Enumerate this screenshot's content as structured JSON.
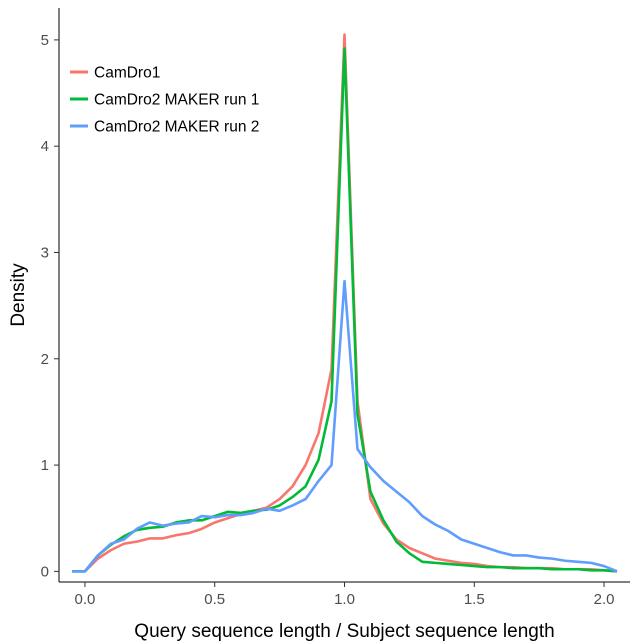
{
  "chart_data": {
    "type": "line",
    "title": "",
    "xlabel": "Query sequence length / Subject sequence length",
    "ylabel": "Density",
    "xlim": [
      -0.1,
      2.1
    ],
    "ylim": [
      -0.1,
      5.3
    ],
    "x_ticks": [
      0.0,
      0.5,
      1.0,
      1.5,
      2.0
    ],
    "x_tick_labels": [
      "0.0",
      "0.5",
      "1.0",
      "1.5",
      "2.0"
    ],
    "y_ticks": [
      0,
      1,
      2,
      3,
      4,
      5
    ],
    "y_tick_labels": [
      "0",
      "1",
      "2",
      "3",
      "4",
      "5"
    ],
    "grid": false,
    "legend_position": "top-left",
    "series": [
      {
        "name": "CamDro1",
        "color": "#F8766D",
        "x": [
          -0.05,
          0.0,
          0.05,
          0.1,
          0.15,
          0.2,
          0.25,
          0.3,
          0.35,
          0.4,
          0.45,
          0.5,
          0.55,
          0.6,
          0.65,
          0.7,
          0.75,
          0.8,
          0.85,
          0.9,
          0.95,
          1.0,
          1.05,
          1.1,
          1.15,
          1.2,
          1.25,
          1.3,
          1.35,
          1.4,
          1.45,
          1.5,
          1.55,
          1.6,
          1.65,
          1.7,
          1.75,
          1.8,
          1.85,
          1.9,
          1.95,
          2.0,
          2.05
        ],
        "y": [
          0.0,
          0.0,
          0.12,
          0.2,
          0.26,
          0.28,
          0.31,
          0.31,
          0.34,
          0.36,
          0.4,
          0.46,
          0.5,
          0.54,
          0.57,
          0.6,
          0.68,
          0.8,
          1.0,
          1.3,
          1.9,
          5.05,
          1.6,
          0.68,
          0.45,
          0.3,
          0.22,
          0.17,
          0.12,
          0.1,
          0.08,
          0.07,
          0.05,
          0.04,
          0.04,
          0.03,
          0.03,
          0.03,
          0.02,
          0.02,
          0.02,
          0.01,
          0.0
        ]
      },
      {
        "name": "CamDro2 MAKER run 1",
        "color": "#00BA38",
        "x": [
          -0.05,
          0.0,
          0.05,
          0.1,
          0.15,
          0.2,
          0.25,
          0.3,
          0.35,
          0.4,
          0.45,
          0.5,
          0.55,
          0.6,
          0.65,
          0.7,
          0.75,
          0.8,
          0.85,
          0.9,
          0.95,
          1.0,
          1.05,
          1.1,
          1.15,
          1.2,
          1.25,
          1.3,
          1.35,
          1.4,
          1.45,
          1.5,
          1.55,
          1.6,
          1.65,
          1.7,
          1.75,
          1.8,
          1.85,
          1.9,
          1.95,
          2.0,
          2.05
        ],
        "y": [
          0.0,
          0.0,
          0.15,
          0.25,
          0.33,
          0.39,
          0.41,
          0.42,
          0.46,
          0.48,
          0.48,
          0.52,
          0.56,
          0.55,
          0.57,
          0.58,
          0.62,
          0.7,
          0.8,
          1.05,
          1.6,
          4.92,
          1.48,
          0.75,
          0.48,
          0.28,
          0.17,
          0.09,
          0.08,
          0.07,
          0.06,
          0.05,
          0.04,
          0.04,
          0.03,
          0.03,
          0.03,
          0.02,
          0.02,
          0.02,
          0.01,
          0.01,
          0.0
        ]
      },
      {
        "name": "CamDro2 MAKER run 2",
        "color": "#619CFF",
        "x": [
          -0.05,
          0.0,
          0.05,
          0.1,
          0.15,
          0.2,
          0.25,
          0.3,
          0.35,
          0.4,
          0.45,
          0.5,
          0.55,
          0.6,
          0.65,
          0.7,
          0.75,
          0.8,
          0.85,
          0.9,
          0.95,
          1.0,
          1.05,
          1.1,
          1.15,
          1.2,
          1.25,
          1.3,
          1.35,
          1.4,
          1.45,
          1.5,
          1.55,
          1.6,
          1.65,
          1.7,
          1.75,
          1.8,
          1.85,
          1.9,
          1.95,
          2.0,
          2.05
        ],
        "y": [
          0.0,
          0.0,
          0.15,
          0.26,
          0.3,
          0.4,
          0.46,
          0.43,
          0.45,
          0.46,
          0.52,
          0.51,
          0.53,
          0.53,
          0.55,
          0.59,
          0.57,
          0.62,
          0.68,
          0.85,
          1.0,
          2.73,
          1.15,
          0.98,
          0.85,
          0.75,
          0.65,
          0.52,
          0.44,
          0.38,
          0.3,
          0.26,
          0.22,
          0.18,
          0.15,
          0.15,
          0.13,
          0.12,
          0.1,
          0.09,
          0.08,
          0.05,
          0.0
        ]
      }
    ]
  }
}
